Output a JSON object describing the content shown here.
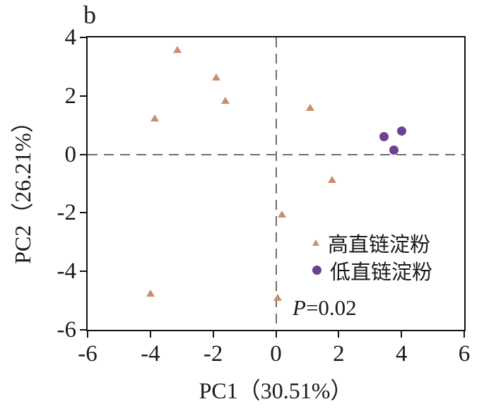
{
  "figure": {
    "panel_label": "b",
    "annotation_p": "P",
    "annotation_rest": "=0.02"
  },
  "chart_data": {
    "type": "scatter",
    "title": "b",
    "xlabel": "PC1（30.51%）",
    "ylabel": "PC2（26.21%）",
    "xlim": [
      -6,
      6
    ],
    "ylim": [
      -6,
      4
    ],
    "xticks": [
      -6,
      -4,
      -2,
      0,
      2,
      4,
      6
    ],
    "yticks": [
      4,
      2,
      0,
      -2,
      -4,
      -6
    ],
    "grid": "dashed zero lines at x=0 and y=0",
    "legend_position": "inside lower-right",
    "annotation": "P=0.02",
    "series": [
      {
        "name": "高直链淀粉",
        "marker": "triangle",
        "color": "#CA8E6E",
        "points": [
          [
            -3.15,
            3.6
          ],
          [
            -1.9,
            2.65
          ],
          [
            -1.6,
            1.85
          ],
          [
            -3.85,
            1.25
          ],
          [
            1.1,
            1.6
          ],
          [
            1.8,
            -0.85
          ],
          [
            0.2,
            -2.05
          ],
          [
            0.05,
            -4.9
          ],
          [
            -4.0,
            -4.75
          ]
        ]
      },
      {
        "name": "低直链淀粉",
        "marker": "circle",
        "color": "#6B4095",
        "points": [
          [
            3.45,
            0.6
          ],
          [
            4.0,
            0.8
          ],
          [
            3.75,
            0.15
          ]
        ]
      }
    ],
    "colors": {
      "axis": "#111111",
      "zero_line": "#6e6e6e",
      "triangle": "#CA8E6E",
      "circle": "#6B4095"
    }
  }
}
